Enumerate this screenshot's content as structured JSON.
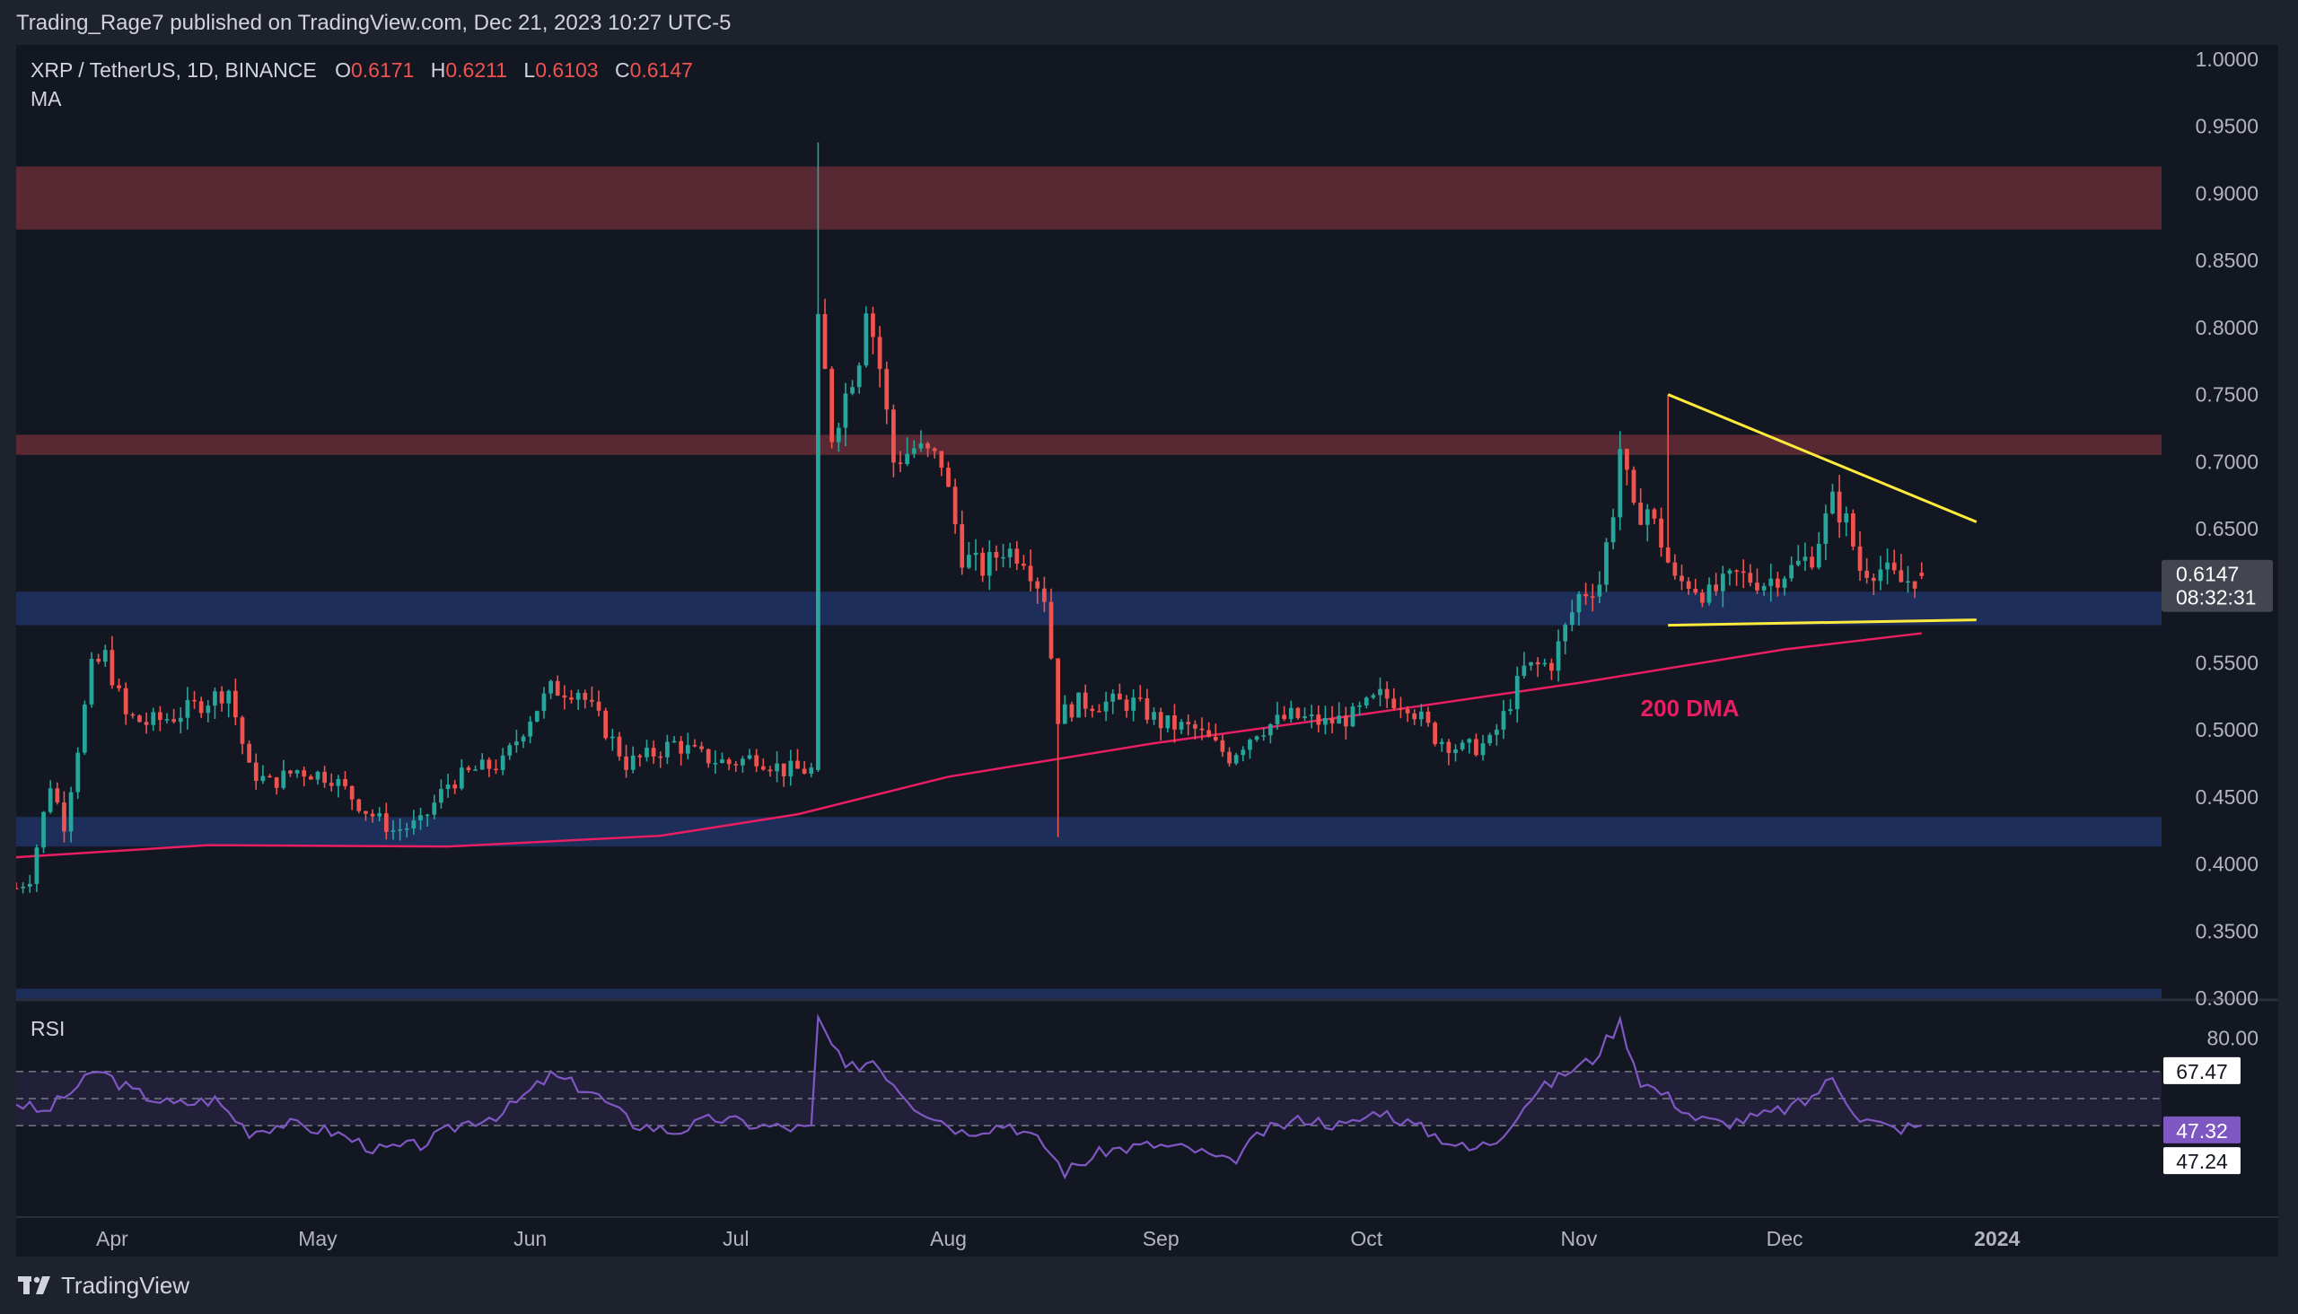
{
  "header": {
    "publisher_line": "Trading_Rage7 published on TradingView.com, Dec 21, 2023 10:27 UTC-5"
  },
  "footer": {
    "brand": "TradingView"
  },
  "legend": {
    "symbol": "XRP / TetherUS, 1D, BINANCE",
    "open_label": "O",
    "open": "0.6171",
    "high_label": "H",
    "high": "0.6211",
    "low_label": "L",
    "low": "0.6103",
    "close_label": "C",
    "close": "0.6147",
    "indicator": "MA"
  },
  "rsi_panel": {
    "label": "RSI"
  },
  "colors": {
    "up": "#26a69a",
    "down": "#ef5350",
    "ma": "#e91e63",
    "rsi_line": "#7e57c2",
    "trendline": "#ffeb3b",
    "supply_zone": "#5c2a34",
    "demand_zone": "#1e2f5e",
    "annotation": "#e91e63"
  },
  "chart_data": [
    {
      "type": "candlestick",
      "title": "XRP / TetherUS, 1D, BINANCE",
      "y_axis": {
        "scale": "linear",
        "ylim": [
          0.3,
          1.0
        ],
        "tick_labels": [
          "1.0000",
          "0.9500",
          "0.9000",
          "0.8500",
          "0.8000",
          "0.7500",
          "0.7000",
          "0.6500",
          "0.6000",
          "0.5500",
          "0.5000",
          "0.4500",
          "0.4000",
          "0.3500",
          "0.3000"
        ]
      },
      "x_axis": {
        "range": [
          "2023-03-18",
          "2024-01-25"
        ],
        "tick_labels": [
          "Apr",
          "May",
          "Jun",
          "Jul",
          "Aug",
          "Sep",
          "Oct",
          "Nov",
          "Dec",
          "2024"
        ],
        "tick_dates": [
          "2023-04-01",
          "2023-05-01",
          "2023-06-01",
          "2023-07-01",
          "2023-08-01",
          "2023-09-01",
          "2023-10-01",
          "2023-11-01",
          "2023-12-01",
          "2024-01-01"
        ]
      },
      "price_path": [
        [
          "2023-03-18",
          0.382
        ],
        [
          "2023-03-20",
          0.39
        ],
        [
          "2023-03-23",
          0.46
        ],
        [
          "2023-03-25",
          0.43
        ],
        [
          "2023-03-29",
          0.545
        ],
        [
          "2023-03-31",
          0.555
        ],
        [
          "2023-04-03",
          0.51
        ],
        [
          "2023-04-06",
          0.505
        ],
        [
          "2023-04-10",
          0.51
        ],
        [
          "2023-04-14",
          0.52
        ],
        [
          "2023-04-18",
          0.53
        ],
        [
          "2023-04-21",
          0.47
        ],
        [
          "2023-04-24",
          0.46
        ],
        [
          "2023-04-28",
          0.47
        ],
        [
          "2023-05-03",
          0.465
        ],
        [
          "2023-05-08",
          0.44
        ],
        [
          "2023-05-12",
          0.425
        ],
        [
          "2023-05-16",
          0.43
        ],
        [
          "2023-05-20",
          0.46
        ],
        [
          "2023-05-24",
          0.47
        ],
        [
          "2023-05-28",
          0.475
        ],
        [
          "2023-06-01",
          0.51
        ],
        [
          "2023-06-04",
          0.53
        ],
        [
          "2023-06-08",
          0.53
        ],
        [
          "2023-06-12",
          0.5
        ],
        [
          "2023-06-15",
          0.475
        ],
        [
          "2023-06-18",
          0.48
        ],
        [
          "2023-06-22",
          0.49
        ],
        [
          "2023-06-26",
          0.48
        ],
        [
          "2023-06-30",
          0.475
        ],
        [
          "2023-07-04",
          0.48
        ],
        [
          "2023-07-08",
          0.47
        ],
        [
          "2023-07-12",
          0.47
        ],
        [
          "2023-07-13",
          0.81
        ],
        [
          "2023-07-15",
          0.72
        ],
        [
          "2023-07-17",
          0.75
        ],
        [
          "2023-07-19",
          0.78
        ],
        [
          "2023-07-20",
          0.82
        ],
        [
          "2023-07-22",
          0.77
        ],
        [
          "2023-07-24",
          0.7
        ],
        [
          "2023-07-27",
          0.71
        ],
        [
          "2023-07-31",
          0.7
        ],
        [
          "2023-08-03",
          0.63
        ],
        [
          "2023-08-06",
          0.62
        ],
        [
          "2023-08-09",
          0.635
        ],
        [
          "2023-08-12",
          0.63
        ],
        [
          "2023-08-15",
          0.6
        ],
        [
          "2023-08-17",
          0.51
        ],
        [
          "2023-08-20",
          0.52
        ],
        [
          "2023-08-24",
          0.52
        ],
        [
          "2023-08-28",
          0.52
        ],
        [
          "2023-09-01",
          0.505
        ],
        [
          "2023-09-06",
          0.5
        ],
        [
          "2023-09-11",
          0.48
        ],
        [
          "2023-09-15",
          0.5
        ],
        [
          "2023-09-20",
          0.51
        ],
        [
          "2023-09-25",
          0.505
        ],
        [
          "2023-09-29",
          0.51
        ],
        [
          "2023-10-03",
          0.525
        ],
        [
          "2023-10-07",
          0.52
        ],
        [
          "2023-10-11",
          0.495
        ],
        [
          "2023-10-15",
          0.485
        ],
        [
          "2023-10-19",
          0.49
        ],
        [
          "2023-10-21",
          0.51
        ],
        [
          "2023-10-24",
          0.545
        ],
        [
          "2023-10-28",
          0.55
        ],
        [
          "2023-11-01",
          0.6
        ],
        [
          "2023-11-04",
          0.61
        ],
        [
          "2023-11-06",
          0.665
        ],
        [
          "2023-11-07",
          0.71
        ],
        [
          "2023-11-09",
          0.66
        ],
        [
          "2023-11-11",
          0.665
        ],
        [
          "2023-11-13",
          0.64
        ],
        [
          "2023-11-15",
          0.61
        ],
        [
          "2023-11-17",
          0.61
        ],
        [
          "2023-11-20",
          0.6
        ],
        [
          "2023-11-24",
          0.615
        ],
        [
          "2023-11-28",
          0.61
        ],
        [
          "2023-12-02",
          0.62
        ],
        [
          "2023-12-05",
          0.63
        ],
        [
          "2023-12-08",
          0.67
        ],
        [
          "2023-12-10",
          0.655
        ],
        [
          "2023-12-12",
          0.62
        ],
        [
          "2023-12-15",
          0.62
        ],
        [
          "2023-12-18",
          0.61
        ],
        [
          "2023-12-21",
          0.6147
        ]
      ],
      "moving_average": {
        "name": "200 DMA",
        "points": [
          [
            "2023-03-18",
            0.405
          ],
          [
            "2023-04-15",
            0.414
          ],
          [
            "2023-05-20",
            0.413
          ],
          [
            "2023-06-20",
            0.421
          ],
          [
            "2023-07-10",
            0.437
          ],
          [
            "2023-08-01",
            0.465
          ],
          [
            "2023-08-31",
            0.49
          ],
          [
            "2023-10-01",
            0.512
          ],
          [
            "2023-11-01",
            0.535
          ],
          [
            "2023-12-01",
            0.56
          ],
          [
            "2023-12-21",
            0.572
          ]
        ]
      },
      "zones": [
        {
          "kind": "supply",
          "from": 0.873,
          "to": 0.92
        },
        {
          "kind": "supply",
          "from": 0.705,
          "to": 0.72
        },
        {
          "kind": "demand",
          "from": 0.578,
          "to": 0.603
        },
        {
          "kind": "demand",
          "from": 0.413,
          "to": 0.435
        },
        {
          "kind": "demand",
          "from": 0.298,
          "to": 0.307
        }
      ],
      "trendlines": [
        {
          "from": [
            "2023-11-14",
            0.75
          ],
          "to": [
            "2023-12-29",
            0.655
          ]
        },
        {
          "from": [
            "2023-11-14",
            0.578
          ],
          "to": [
            "2023-12-29",
            0.582
          ]
        }
      ],
      "annotations": [
        {
          "text": "200 DMA",
          "at": [
            "2023-11-10",
            0.51
          ]
        }
      ],
      "last_price": {
        "value": "0.6147",
        "countdown": "08:32:31"
      }
    },
    {
      "type": "line",
      "title": "RSI",
      "y_axis": {
        "ylim": [
          15,
          93
        ]
      },
      "bands": {
        "upper": 67.47,
        "lower": 47.24
      },
      "levels": [
        {
          "label": "80.00",
          "value": 80,
          "style": "tick"
        },
        {
          "label": "67.47",
          "value": 67.47,
          "style": "white"
        },
        {
          "label": "47.32",
          "value": 47.32,
          "style": "purple"
        },
        {
          "label": "47.24",
          "value": 47.24,
          "style": "white"
        }
      ],
      "rsi_path": [
        [
          "2023-03-18",
          56
        ],
        [
          "2023-03-22",
          52
        ],
        [
          "2023-03-26",
          60
        ],
        [
          "2023-03-30",
          68
        ],
        [
          "2023-04-04",
          60
        ],
        [
          "2023-04-10",
          55
        ],
        [
          "2023-04-16",
          57
        ],
        [
          "2023-04-21",
          45
        ],
        [
          "2023-04-26",
          48
        ],
        [
          "2023-05-03",
          45
        ],
        [
          "2023-05-10",
          38
        ],
        [
          "2023-05-16",
          40
        ],
        [
          "2023-05-22",
          48
        ],
        [
          "2023-05-28",
          52
        ],
        [
          "2023-06-04",
          66
        ],
        [
          "2023-06-10",
          60
        ],
        [
          "2023-06-16",
          48
        ],
        [
          "2023-06-22",
          45
        ],
        [
          "2023-06-28",
          50
        ],
        [
          "2023-07-05",
          47
        ],
        [
          "2023-07-12",
          46
        ],
        [
          "2023-07-13",
          87
        ],
        [
          "2023-07-17",
          68
        ],
        [
          "2023-07-21",
          72
        ],
        [
          "2023-07-27",
          55
        ],
        [
          "2023-08-03",
          45
        ],
        [
          "2023-08-10",
          48
        ],
        [
          "2023-08-15",
          40
        ],
        [
          "2023-08-18",
          30
        ],
        [
          "2023-08-24",
          38
        ],
        [
          "2023-08-31",
          40
        ],
        [
          "2023-09-06",
          38
        ],
        [
          "2023-09-11",
          33
        ],
        [
          "2023-09-16",
          45
        ],
        [
          "2023-09-22",
          50
        ],
        [
          "2023-09-28",
          47
        ],
        [
          "2023-10-03",
          53
        ],
        [
          "2023-10-10",
          45
        ],
        [
          "2023-10-16",
          38
        ],
        [
          "2023-10-20",
          42
        ],
        [
          "2023-10-25",
          58
        ],
        [
          "2023-10-30",
          67
        ],
        [
          "2023-11-03",
          72
        ],
        [
          "2023-11-07",
          86
        ],
        [
          "2023-11-10",
          64
        ],
        [
          "2023-11-14",
          58
        ],
        [
          "2023-11-18",
          50
        ],
        [
          "2023-11-22",
          48
        ],
        [
          "2023-11-28",
          51
        ],
        [
          "2023-12-04",
          56
        ],
        [
          "2023-12-08",
          65
        ],
        [
          "2023-12-12",
          50
        ],
        [
          "2023-12-17",
          46
        ],
        [
          "2023-12-21",
          47.32
        ]
      ]
    }
  ]
}
